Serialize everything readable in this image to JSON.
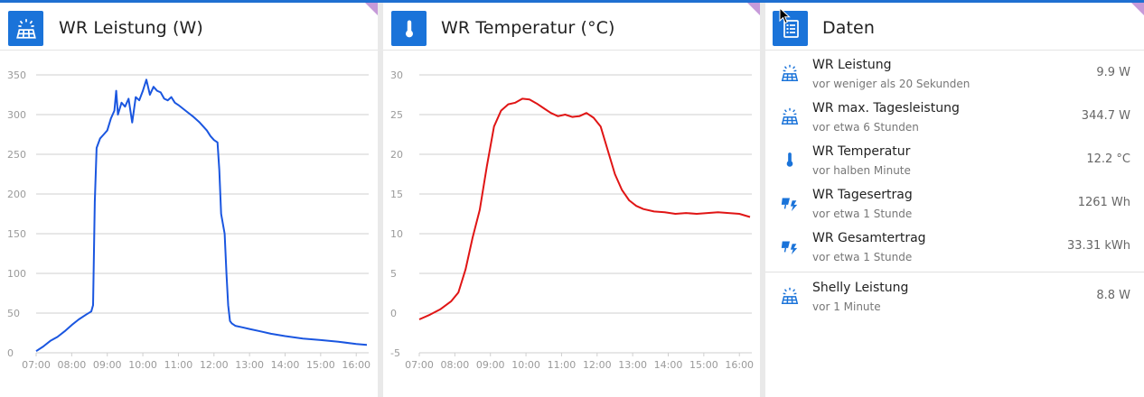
{
  "colors": {
    "accent": "#1a73d9",
    "corner": "#c69ad9",
    "power_line": "#1a56e0",
    "temp_line": "#e01515"
  },
  "cards": {
    "power": {
      "title": "WR Leistung (W)",
      "icon": "solar-panel-icon",
      "chart_data": {
        "type": "line",
        "title": "WR Leistung (W)",
        "xlabel": "",
        "ylabel": "",
        "ylim": [
          0,
          350
        ],
        "yticks": [
          0,
          50,
          100,
          150,
          200,
          250,
          300,
          350
        ],
        "xtick_labels": [
          "07:00",
          "08:00",
          "09:00",
          "10:00",
          "11:00",
          "12:00",
          "13:00",
          "14:00",
          "15:00",
          "16:00"
        ],
        "grid": true,
        "series": [
          {
            "x": [
              7.0,
              7.2,
              7.4,
              7.6,
              7.8,
              8.0,
              8.2,
              8.4,
              8.55,
              8.6,
              8.65,
              8.7,
              8.8,
              8.9,
              9.0,
              9.1,
              9.2,
              9.25,
              9.3,
              9.4,
              9.5,
              9.6,
              9.7,
              9.8,
              9.9,
              10.0,
              10.1,
              10.2,
              10.3,
              10.4,
              10.5,
              10.6,
              10.7,
              10.8,
              10.9,
              11.0,
              11.2,
              11.4,
              11.6,
              11.8,
              11.9,
              12.0,
              12.1,
              12.15,
              12.2,
              12.3,
              12.35,
              12.4,
              12.45,
              12.5,
              12.6,
              12.8,
              13.0,
              13.3,
              13.6,
              14.0,
              14.5,
              15.0,
              15.5,
              16.0,
              16.3
            ],
            "y": [
              2,
              8,
              15,
              20,
              27,
              35,
              42,
              48,
              52,
              60,
              190,
              258,
              270,
              275,
              280,
              295,
              305,
              330,
              300,
              315,
              310,
              320,
              290,
              322,
              318,
              330,
              344,
              325,
              335,
              330,
              328,
              320,
              318,
              322,
              315,
              312,
              305,
              298,
              290,
              280,
              273,
              268,
              265,
              230,
              175,
              150,
              100,
              60,
              40,
              37,
              34,
              32,
              30,
              27,
              24,
              21,
              18,
              16,
              14,
              11,
              10
            ]
          }
        ]
      }
    },
    "temp": {
      "title": "WR Temperatur (°C)",
      "icon": "thermometer-icon",
      "chart_data": {
        "type": "line",
        "title": "WR Temperatur (°C)",
        "xlabel": "",
        "ylabel": "",
        "ylim": [
          -5,
          30
        ],
        "yticks": [
          -5,
          0,
          5,
          10,
          15,
          20,
          25,
          30
        ],
        "xtick_labels": [
          "07:00",
          "08:00",
          "09:00",
          "10:00",
          "11:00",
          "12:00",
          "13:00",
          "14:00",
          "15:00",
          "16:00"
        ],
        "grid": true,
        "series": [
          {
            "x": [
              7.0,
              7.3,
              7.6,
              7.9,
              8.1,
              8.3,
              8.5,
              8.7,
              8.9,
              9.1,
              9.3,
              9.5,
              9.7,
              9.9,
              10.1,
              10.3,
              10.5,
              10.7,
              10.9,
              11.1,
              11.3,
              11.5,
              11.7,
              11.9,
              12.1,
              12.3,
              12.5,
              12.7,
              12.9,
              13.1,
              13.3,
              13.6,
              13.9,
              14.2,
              14.5,
              14.8,
              15.1,
              15.4,
              15.7,
              16.0,
              16.3
            ],
            "y": [
              -0.8,
              -0.2,
              0.5,
              1.5,
              2.6,
              5.5,
              9.5,
              13.0,
              18.5,
              23.5,
              25.5,
              26.3,
              26.5,
              27.0,
              26.9,
              26.4,
              25.8,
              25.2,
              24.8,
              25.0,
              24.7,
              24.8,
              25.2,
              24.6,
              23.5,
              20.5,
              17.5,
              15.5,
              14.2,
              13.5,
              13.1,
              12.8,
              12.7,
              12.5,
              12.6,
              12.5,
              12.6,
              12.7,
              12.6,
              12.5,
              12.1
            ]
          }
        ]
      }
    },
    "data": {
      "title": "Daten",
      "icon": "list-icon",
      "items": [
        {
          "icon": "solar-panel-icon",
          "name": "WR Leistung",
          "time": "vor weniger als 20 Sekunden",
          "value": "9.9 W"
        },
        {
          "icon": "solar-panel-icon",
          "name": "WR max. Tagesleistung",
          "time": "vor etwa 6 Stunden",
          "value": "344.7 W"
        },
        {
          "icon": "thermometer-icon",
          "name": "WR Temperatur",
          "time": "vor halben Minute",
          "value": "12.2 °C"
        },
        {
          "icon": "solar-power-icon",
          "name": "WR Tagesertrag",
          "time": "vor etwa 1 Stunde",
          "value": "1261 Wh"
        },
        {
          "icon": "solar-power-icon",
          "name": "WR Gesamtertrag",
          "time": "vor etwa 1 Stunde",
          "value": "33.31 kWh"
        }
      ],
      "items2": [
        {
          "icon": "solar-panel-icon",
          "name": "Shelly Leistung",
          "time": "vor 1 Minute",
          "value": "8.8 W"
        }
      ]
    }
  }
}
